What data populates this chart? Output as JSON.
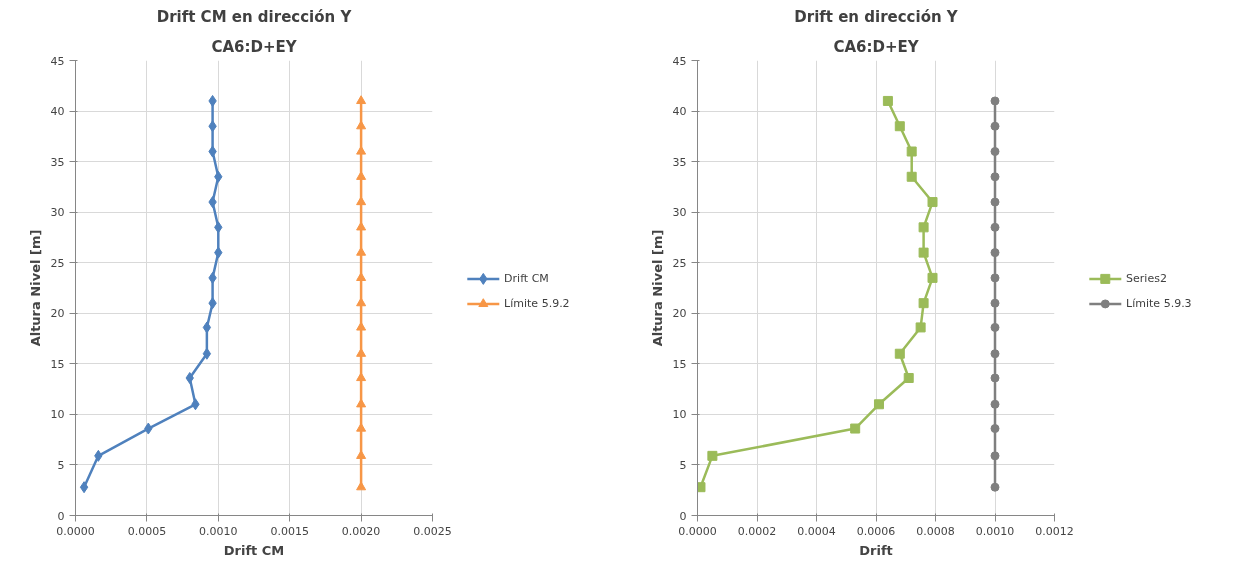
{
  "chart_data": [
    {
      "type": "line",
      "title": "Drift CM en dirección Y",
      "subtitle": "CA6:D+EY",
      "xlabel": "Drift CM",
      "ylabel": "Altura Nivel [m]",
      "xlim": [
        0,
        0.0025
      ],
      "xticks": [
        {
          "value": 0,
          "label": "0.0000"
        },
        {
          "value": 0.0005,
          "label": "0.0005"
        },
        {
          "value": 0.001,
          "label": "0.0010"
        },
        {
          "value": 0.0015,
          "label": "0.0015"
        },
        {
          "value": 0.002,
          "label": "0.0020"
        },
        {
          "value": 0.0025,
          "label": "0.0025"
        }
      ],
      "ylim": [
        0,
        45
      ],
      "yticks": [
        0,
        5,
        10,
        15,
        20,
        25,
        30,
        35,
        40,
        45
      ],
      "grid": true,
      "legend": "right",
      "series": [
        {
          "name": "Drift CM",
          "color": "#4f81bd",
          "marker": "diamond",
          "x": [
            6e-05,
            0.00016,
            0.00051,
            0.00084,
            0.0008,
            0.00092,
            0.00092,
            0.00096,
            0.00096,
            0.001,
            0.001,
            0.00096,
            0.001,
            0.00096,
            0.00096,
            0.00096
          ],
          "values": [
            2.8,
            5.9,
            8.6,
            11.0,
            13.6,
            16.0,
            18.6,
            21.0,
            23.5,
            26.0,
            28.5,
            31.0,
            33.5,
            36.0,
            38.5,
            41.0
          ]
        },
        {
          "name": "Límite 5.9.2",
          "color": "#f79646",
          "marker": "triangle",
          "x": [
            0.002,
            0.002,
            0.002,
            0.002,
            0.002,
            0.002,
            0.002,
            0.002,
            0.002,
            0.002,
            0.002,
            0.002,
            0.002,
            0.002,
            0.002,
            0.002
          ],
          "values": [
            2.8,
            5.9,
            8.6,
            11.0,
            13.6,
            16.0,
            18.6,
            21.0,
            23.5,
            26.0,
            28.5,
            31.0,
            33.5,
            36.0,
            38.5,
            41.0
          ]
        }
      ]
    },
    {
      "type": "line",
      "title": "Drift en dirección Y",
      "subtitle": "CA6:D+EY",
      "xlabel": "Drift",
      "ylabel": "Altura Nivel [m]",
      "xlim": [
        0,
        0.0012
      ],
      "xticks": [
        {
          "value": 0,
          "label": "0.0000"
        },
        {
          "value": 0.0002,
          "label": "0.0002"
        },
        {
          "value": 0.0004,
          "label": "0.0004"
        },
        {
          "value": 0.0006,
          "label": "0.0006"
        },
        {
          "value": 0.0008,
          "label": "0.0008"
        },
        {
          "value": 0.001,
          "label": "0.0010"
        },
        {
          "value": 0.0012,
          "label": "0.0012"
        }
      ],
      "ylim": [
        0,
        45
      ],
      "yticks": [
        0,
        5,
        10,
        15,
        20,
        25,
        30,
        35,
        40,
        45
      ],
      "grid": true,
      "legend": "right",
      "series": [
        {
          "name": "Series2",
          "color": "#9bbb59",
          "marker": "square",
          "x": [
            1e-05,
            5e-05,
            0.00053,
            0.00061,
            0.00071,
            0.00068,
            0.00075,
            0.00076,
            0.00079,
            0.00076,
            0.00076,
            0.00079,
            0.00072,
            0.00072,
            0.00068,
            0.00064
          ],
          "values": [
            2.8,
            5.9,
            8.6,
            11.0,
            13.6,
            16.0,
            18.6,
            21.0,
            23.5,
            26.0,
            28.5,
            31.0,
            33.5,
            36.0,
            38.5,
            41.0
          ]
        },
        {
          "name": "Límite 5.9.3",
          "color": "#7f7f7f",
          "marker": "circle",
          "x": [
            0.001,
            0.001,
            0.001,
            0.001,
            0.001,
            0.001,
            0.001,
            0.001,
            0.001,
            0.001,
            0.001,
            0.001,
            0.001,
            0.001,
            0.001,
            0.001
          ],
          "values": [
            2.8,
            5.9,
            8.6,
            11.0,
            13.6,
            16.0,
            18.6,
            21.0,
            23.5,
            26.0,
            28.5,
            31.0,
            33.5,
            36.0,
            38.5,
            41.0
          ]
        }
      ]
    }
  ]
}
